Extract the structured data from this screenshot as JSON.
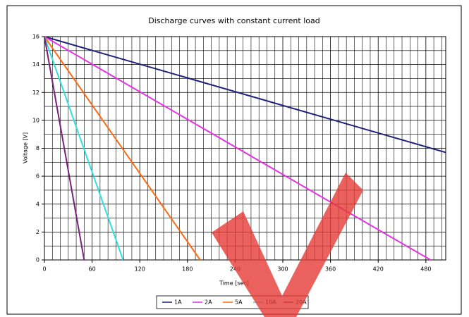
{
  "chart_data": {
    "type": "line",
    "title": "Discharge curves with constant current load",
    "x_label": "Time [sec]",
    "y_label": "Voltage [V]",
    "series": [
      {
        "name": "1A",
        "color": "#1f1f7a",
        "x": [
          0,
          505
        ],
        "values": [
          16,
          7.7
        ]
      },
      {
        "name": "2A",
        "color": "#e632e6",
        "x": [
          0,
          486
        ],
        "values": [
          16,
          0
        ]
      },
      {
        "name": "5A",
        "color": "#ff6a10",
        "x": [
          0,
          196
        ],
        "values": [
          16,
          0
        ]
      },
      {
        "name": "10A",
        "color": "#33dede",
        "x": [
          0,
          99
        ],
        "values": [
          16,
          0
        ]
      },
      {
        "name": "20A",
        "color": "#7a1f7a",
        "x": [
          0,
          50
        ],
        "values": [
          16,
          0
        ]
      }
    ],
    "xlim": [
      0,
      505
    ],
    "xticks": [
      0,
      60,
      120,
      180,
      240,
      300,
      360,
      420,
      480
    ],
    "ylim": [
      0,
      16
    ],
    "yticks": [
      0,
      2,
      4,
      6,
      8,
      10,
      12,
      14,
      16
    ],
    "grid": true,
    "legend": "bottom"
  }
}
